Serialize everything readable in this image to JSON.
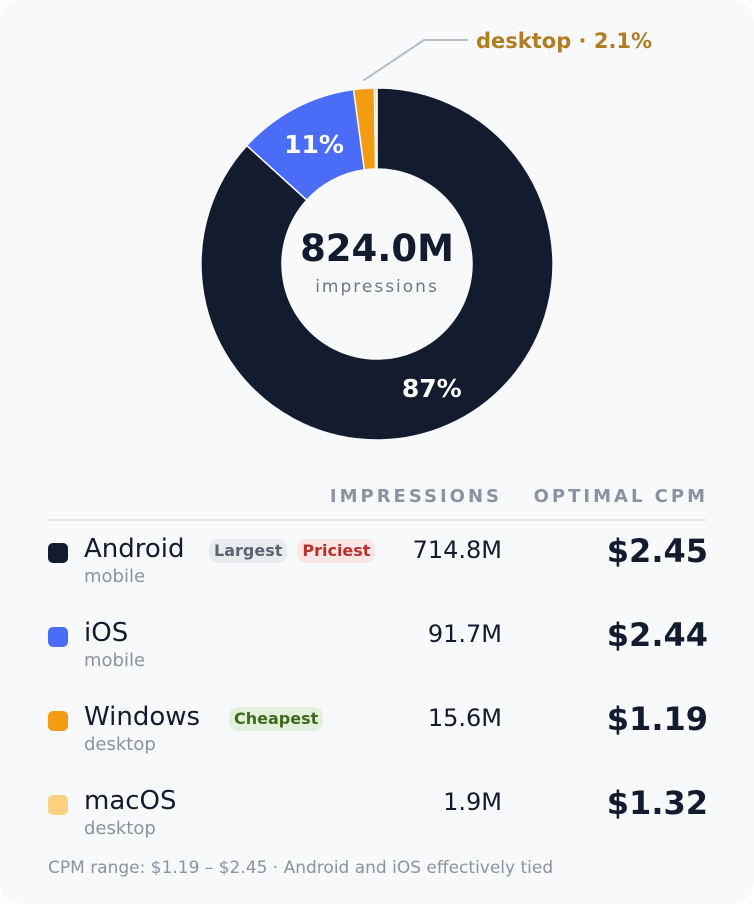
{
  "chart_data": {
    "type": "pie",
    "variant": "donut",
    "center": {
      "value": "824.0M",
      "label": "impressions"
    },
    "slices": [
      {
        "name": "Android",
        "value": 714.8,
        "pct_label": "87%",
        "color": "#131b2e"
      },
      {
        "name": "iOS",
        "value": 91.7,
        "pct_label": "11%",
        "color": "#4a6cf7"
      },
      {
        "name": "Windows",
        "value": 15.6,
        "pct_label": "desktop · 2.1%",
        "color": "#f39c12",
        "label_color": "#b07d23",
        "callout": true
      },
      {
        "name": "macOS",
        "value": 1.9,
        "pct_label": "",
        "color": "#fdd180"
      }
    ]
  },
  "table": {
    "headers": {
      "impressions": "IMPRESSIONS",
      "cpm": "OPTIMAL CPM"
    },
    "rows": [
      {
        "name": "Android",
        "sub": "mobile",
        "impressions": "714.8M",
        "cpm": "$2.45",
        "color": "#131b2e",
        "badges": [
          {
            "text": "Largest",
            "kind": "largest"
          },
          {
            "text": "Priciest",
            "kind": "priciest"
          }
        ]
      },
      {
        "name": "iOS",
        "sub": "mobile",
        "impressions": "91.7M",
        "cpm": "$2.44",
        "color": "#4a6cf7",
        "badges": []
      },
      {
        "name": "Windows",
        "sub": "desktop",
        "impressions": "15.6M",
        "cpm": "$1.19",
        "color": "#f39c12",
        "badges": [
          {
            "text": "Cheapest",
            "kind": "cheapest"
          }
        ]
      },
      {
        "name": "macOS",
        "sub": "desktop",
        "impressions": "1.9M",
        "cpm": "$1.32",
        "color": "#fdd180",
        "badges": []
      }
    ]
  },
  "footnote": "CPM range: $1.19 – $2.45 · Android and iOS effectively tied"
}
